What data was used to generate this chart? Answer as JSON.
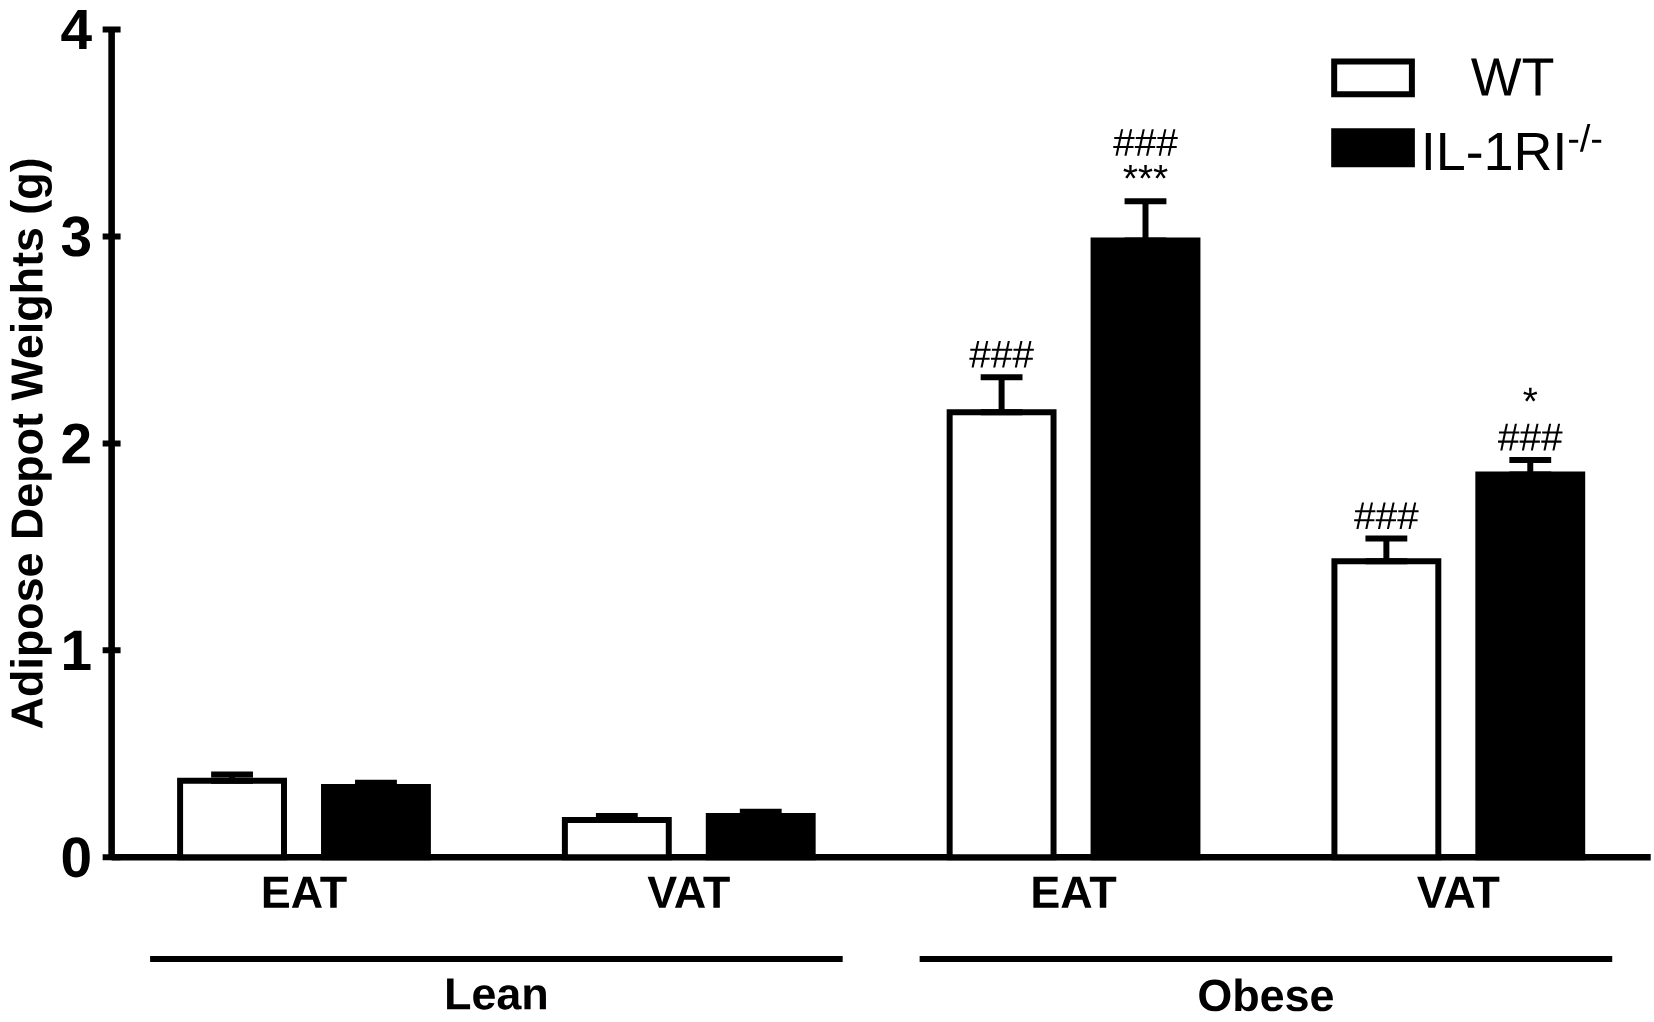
{
  "chart_data": {
    "type": "bar",
    "ylabel": "Adipose Depot Weights (g)",
    "categories": [
      "EAT",
      "VAT",
      "EAT",
      "VAT"
    ],
    "series": [
      {
        "name": "WT",
        "color": "#ffffff",
        "values": [
          0.37,
          0.18,
          2.15,
          1.43
        ],
        "errors": [
          [
            0.37,
            0.4
          ],
          [
            0.18,
            0.2
          ],
          [
            2.15,
            2.32
          ],
          [
            1.43,
            1.54
          ]
        ]
      },
      {
        "name": "IL-1RI$^{-/-}$",
        "color": "#000000",
        "values": [
          0.34,
          0.2,
          2.98,
          1.85
        ],
        "errors": [
          [
            0.34,
            0.36
          ],
          [
            0.2,
            0.22
          ],
          [
            2.98,
            3.17
          ],
          [
            1.85,
            1.92
          ]
        ]
      }
    ],
    "ylim": [
      0,
      4
    ],
    "yticks": [
      0,
      1,
      2,
      3,
      4
    ],
    "grid": false,
    "legend": "top right",
    "annotations": [
      "###",
      "###",
      "***",
      "###",
      "###",
      "*",
      "Lean",
      "Obese"
    ]
  }
}
